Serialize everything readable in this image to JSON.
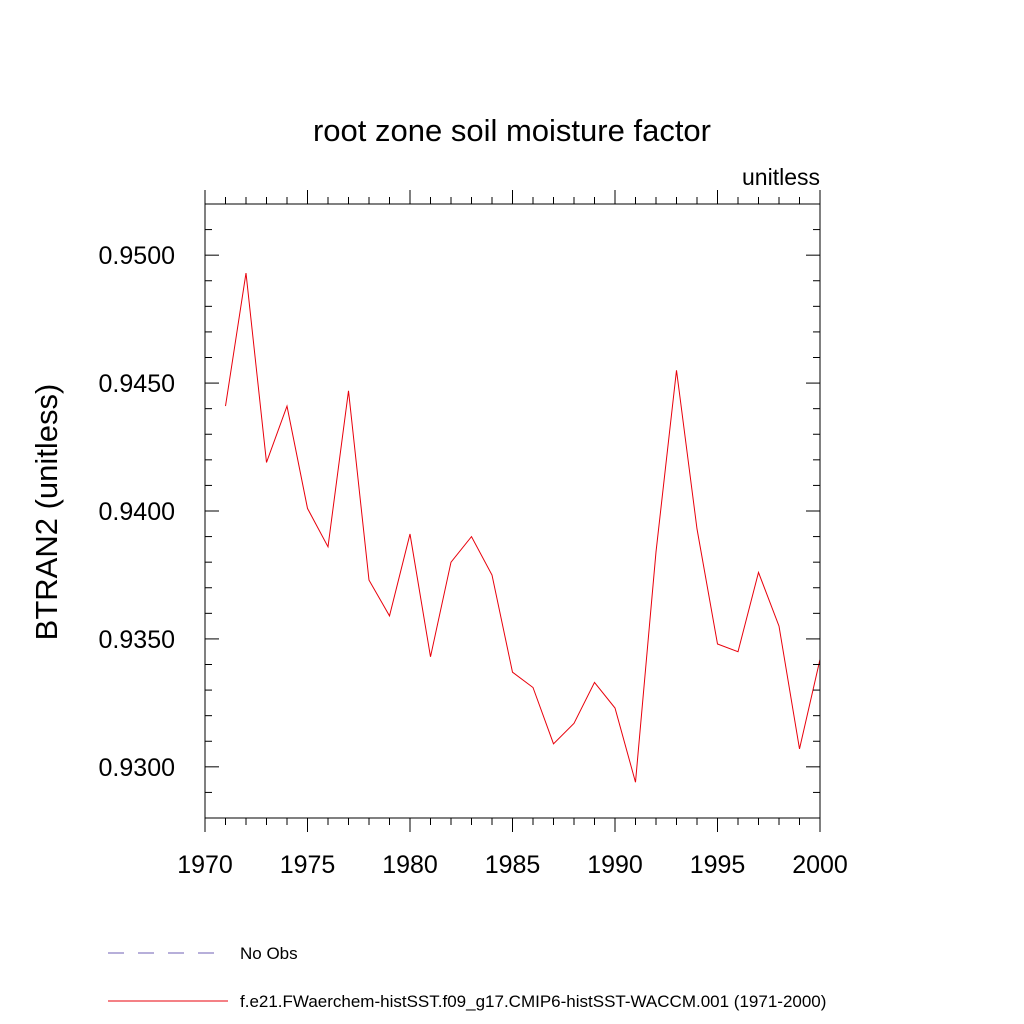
{
  "chart_data": {
    "type": "line",
    "title": "root zone soil moisture factor",
    "units_label": "unitless",
    "ylabel": "BTRAN2  (unitless)",
    "xlabel": "",
    "xlim": [
      1970,
      2000
    ],
    "ylim": [
      0.928,
      0.952
    ],
    "x_ticks": [
      1970,
      1975,
      1980,
      1985,
      1990,
      1995,
      2000
    ],
    "x_tick_labels": [
      "1970",
      "1975",
      "1980",
      "1985",
      "1990",
      "1995",
      "2000"
    ],
    "y_ticks": [
      0.93,
      0.935,
      0.94,
      0.945,
      0.95
    ],
    "y_tick_labels": [
      "0.9300",
      "0.9350",
      "0.9400",
      "0.9450",
      "0.9500"
    ],
    "grid": false,
    "legend_position": "bottom",
    "series": [
      {
        "name": "f.e21.FWaerchem-histSST.f09_g17.CMIP6-histSST-WACCM.001 (1971-2000)",
        "color": "#e8000b",
        "x": [
          1971,
          1972,
          1973,
          1974,
          1975,
          1976,
          1977,
          1978,
          1979,
          1980,
          1981,
          1982,
          1983,
          1984,
          1985,
          1986,
          1987,
          1988,
          1989,
          1990,
          1991,
          1992,
          1993,
          1994,
          1995,
          1996,
          1997,
          1998,
          1999,
          2000
        ],
        "y": [
          0.9441,
          0.9493,
          0.9419,
          0.9441,
          0.9401,
          0.9386,
          0.9447,
          0.9373,
          0.9359,
          0.9391,
          0.9343,
          0.938,
          0.939,
          0.9375,
          0.9337,
          0.9331,
          0.9309,
          0.9317,
          0.9333,
          0.9323,
          0.9294,
          0.9384,
          0.9455,
          0.9393,
          0.9348,
          0.9345,
          0.9376,
          0.9355,
          0.9307,
          0.9342
        ]
      }
    ],
    "legend": [
      {
        "label": "No Obs",
        "style": "dashed",
        "color": "#6f5fb5"
      },
      {
        "label": "f.e21.FWaerchem-histSST.f09_g17.CMIP6-histSST-WACCM.001 (1971-2000)",
        "style": "solid",
        "color": "#e8000b"
      }
    ]
  }
}
